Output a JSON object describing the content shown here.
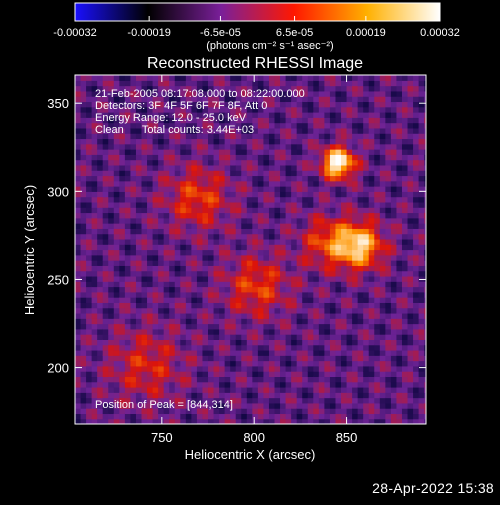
{
  "chart_data": {
    "type": "heatmap",
    "title": "Reconstructed RHESSI Image",
    "xlabel": "Heliocentric X (arcsec)",
    "ylabel": "Heliocentric Y (arcsec)",
    "xlim": [
      703,
      893
    ],
    "ylim": [
      168,
      366
    ],
    "x_ticks": [
      750,
      800,
      850
    ],
    "y_ticks": [
      200,
      250,
      300,
      350
    ],
    "colorbar": {
      "range": [
        -0.00032,
        0.00032
      ],
      "ticks": [
        "-0.00032",
        "-0.00019",
        "-6.5e-05",
        "6.5e-05",
        "0.00019",
        "0.00032"
      ],
      "tick_values": [
        -0.00032,
        -0.00019,
        -6.5e-05,
        6.5e-05,
        0.00019,
        0.00032
      ],
      "unit_label": "(photons cm⁻² s⁻¹ asec⁻²)",
      "colors": [
        "#1a10ff",
        "#000000",
        "#7a1f99",
        "#ff1800",
        "#ffb000",
        "#ffffff"
      ]
    },
    "annotations": [
      "21-Feb-2005 08:17:08.000 to 08:22:00.000",
      "Detectors: 3F 4F 5F 6F 7F 8F, Att 0",
      "Energy Range: 12.0 - 25.0 keV",
      "Clean      Total counts: 3.44E+03"
    ],
    "peak_label": "Position of Peak = [844,314]",
    "peak": [
      844,
      314
    ],
    "sources": [
      {
        "x": 844,
        "y": 315,
        "peak": 1.0,
        "sigma": 6
      },
      {
        "x": 855,
        "y": 268,
        "peak": 0.85,
        "sigma": 9
      },
      {
        "x": 768,
        "y": 295,
        "peak": 0.6,
        "sigma": 12
      },
      {
        "x": 800,
        "y": 245,
        "peak": 0.6,
        "sigma": 12
      },
      {
        "x": 740,
        "y": 200,
        "peak": 0.55,
        "sigma": 14
      },
      {
        "x": 838,
        "y": 270,
        "peak": 0.6,
        "sigma": 10
      }
    ]
  },
  "timestamp": "28-Apr-2022 15:38"
}
